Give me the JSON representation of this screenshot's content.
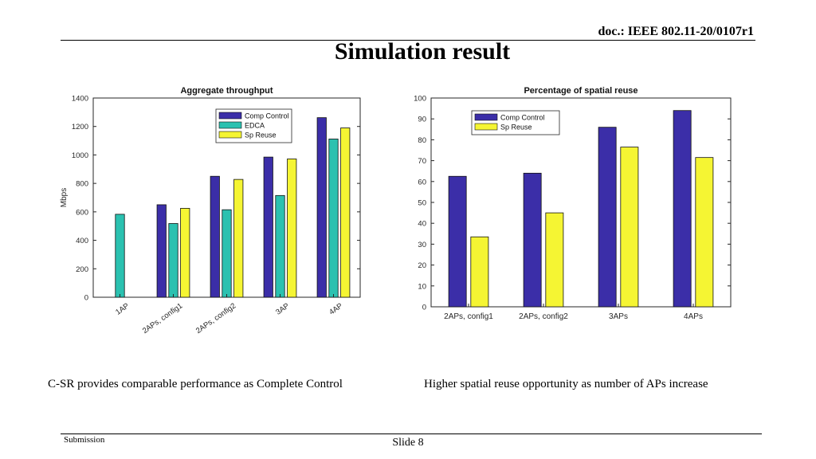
{
  "header": {
    "doc_id": "doc.: IEEE 802.11-20/0107r1",
    "title": "Simulation result"
  },
  "captions": {
    "left": "C-SR provides comparable performance as Complete  Control",
    "right": "Higher spatial reuse opportunity as number of APs increase"
  },
  "footer": {
    "left": "Submission",
    "center": "Slide 8"
  },
  "colors": {
    "comp_control": "#3b2ea8",
    "edca": "#2bc1b0",
    "sp_reuse": "#f5f533"
  },
  "chart_data": [
    {
      "type": "bar",
      "title": "Aggregate throughput",
      "xlabel": "",
      "ylabel": "Mbps",
      "categories": [
        "1AP",
        "2APs, config1",
        "2APs, config2",
        "3AP",
        "4AP"
      ],
      "ylim": [
        0,
        1400
      ],
      "yticks": [
        0,
        200,
        400,
        600,
        800,
        1000,
        1200,
        1400
      ],
      "tick_label_rotation": "diagonal",
      "legend_position": "top-right",
      "grid": false,
      "series": [
        {
          "name": "Comp Control",
          "values": [
            null,
            650,
            850,
            985,
            1262
          ]
        },
        {
          "name": "EDCA",
          "values": [
            583,
            518,
            615,
            715,
            1112
          ]
        },
        {
          "name": "Sp Reuse",
          "values": [
            null,
            625,
            828,
            972,
            1190
          ]
        }
      ]
    },
    {
      "type": "bar",
      "title": "Percentage of spatial reuse",
      "xlabel": "",
      "ylabel": "",
      "categories": [
        "2APs, config1",
        "2APs, config2",
        "3APs",
        "4APs"
      ],
      "ylim": [
        0,
        100
      ],
      "yticks": [
        0,
        10,
        20,
        30,
        40,
        50,
        60,
        70,
        80,
        90,
        100
      ],
      "tick_label_rotation": "horizontal",
      "legend_position": "top-left",
      "grid": false,
      "series": [
        {
          "name": "Comp Control",
          "values": [
            62.5,
            64,
            86,
            94
          ]
        },
        {
          "name": "Sp Reuse",
          "values": [
            33.5,
            45,
            76.5,
            71.5
          ]
        }
      ]
    }
  ]
}
